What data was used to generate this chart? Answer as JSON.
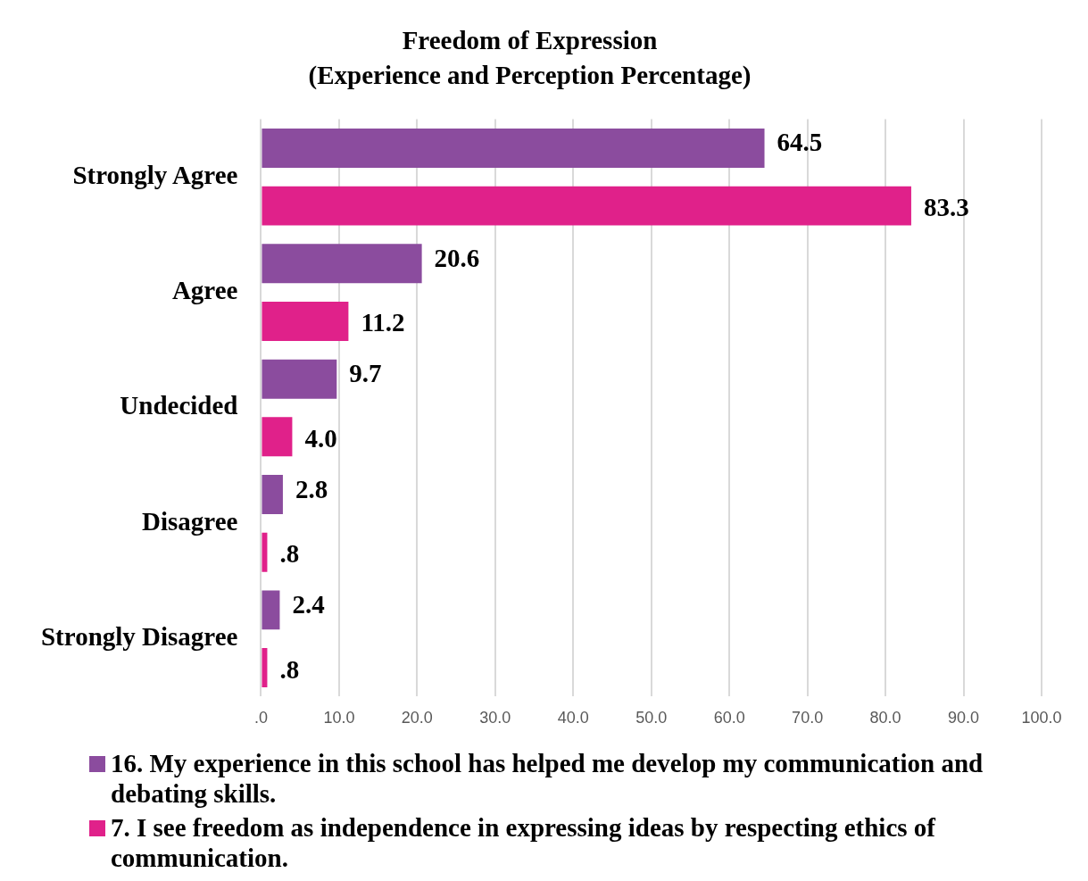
{
  "chart_data": {
    "type": "bar",
    "orientation": "horizontal",
    "title": "Freedom of Expression",
    "subtitle": "(Experience and Perception Percentage)",
    "categories": [
      "Strongly Agree",
      "Agree",
      "Undecided",
      "Disagree",
      "Strongly Disagree"
    ],
    "series": [
      {
        "name": "16. My experience in this school has helped me develop my communication and debating skills.",
        "color": "#8b4c9e",
        "values": [
          64.5,
          20.6,
          9.7,
          2.8,
          2.4
        ],
        "value_labels": [
          "64.5",
          "20.6",
          "9.7",
          "2.8",
          "2.4"
        ]
      },
      {
        "name": "7. I see freedom as independence in expressing ideas by respecting ethics of communication.",
        "color": "#e0218a",
        "values": [
          83.3,
          11.2,
          4.0,
          0.8,
          0.8
        ],
        "value_labels": [
          "83.3",
          "11.2",
          "4.0",
          ".8",
          ".8"
        ]
      }
    ],
    "xlim": [
      0,
      100
    ],
    "xticks": [
      {
        "value": 0,
        "label": ".0"
      },
      {
        "value": 10,
        "label": "10.0"
      },
      {
        "value": 20,
        "label": "20.0"
      },
      {
        "value": 30,
        "label": "30.0"
      },
      {
        "value": 40,
        "label": "40.0"
      },
      {
        "value": 50,
        "label": "50.0"
      },
      {
        "value": 60,
        "label": "60.0"
      },
      {
        "value": 70,
        "label": "70.0"
      },
      {
        "value": 80,
        "label": "80.0"
      },
      {
        "value": 90,
        "label": "90.0"
      },
      {
        "value": 100,
        "label": "100.0"
      }
    ],
    "grid": "x",
    "legend": "bottom"
  }
}
